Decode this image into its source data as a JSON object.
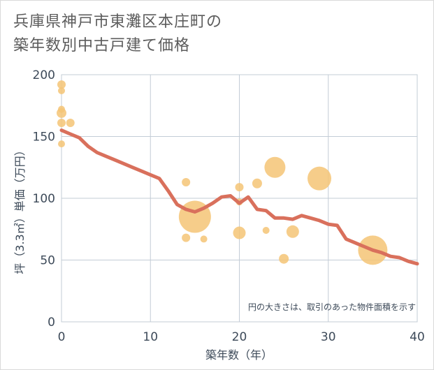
{
  "title": [
    "兵庫県神戸市東灘区本庄町の",
    "築年数別中古戸建て価格"
  ],
  "chart_data": {
    "type": "scatter",
    "title": "兵庫県神戸市東灘区本庄町の築年数別中古戸建て価格",
    "xlabel": "築年数（年）",
    "ylabel": "坪（3.3㎡）単価（万円）",
    "xlim": [
      0,
      40
    ],
    "ylim": [
      0,
      200
    ],
    "xticks": [
      0,
      10,
      20,
      30,
      40
    ],
    "yticks": [
      0,
      50,
      100,
      150,
      200
    ],
    "grid": true,
    "annotation": "円の大きさは、取引のあった物件面積を示す",
    "bubble_color": "#f5c475",
    "line_color": "#d9705c",
    "points": [
      {
        "x": 0,
        "y": 192,
        "size": 1.2
      },
      {
        "x": 0,
        "y": 187,
        "size": 1.0
      },
      {
        "x": 0,
        "y": 172,
        "size": 1.0
      },
      {
        "x": 0,
        "y": 169,
        "size": 1.4
      },
      {
        "x": 0,
        "y": 161,
        "size": 1.2
      },
      {
        "x": 0,
        "y": 144,
        "size": 1.0
      },
      {
        "x": 1,
        "y": 161,
        "size": 1.2
      },
      {
        "x": 14,
        "y": 113,
        "size": 1.2
      },
      {
        "x": 14,
        "y": 68,
        "size": 1.2
      },
      {
        "x": 15,
        "y": 85,
        "size": 4.6
      },
      {
        "x": 16,
        "y": 67,
        "size": 1.0
      },
      {
        "x": 20,
        "y": 109,
        "size": 1.2
      },
      {
        "x": 20,
        "y": 97,
        "size": 1.0
      },
      {
        "x": 20,
        "y": 72,
        "size": 1.8
      },
      {
        "x": 22,
        "y": 112,
        "size": 1.4
      },
      {
        "x": 23,
        "y": 74,
        "size": 1.0
      },
      {
        "x": 24,
        "y": 125,
        "size": 3.0
      },
      {
        "x": 25,
        "y": 51,
        "size": 1.4
      },
      {
        "x": 26,
        "y": 73,
        "size": 1.8
      },
      {
        "x": 29,
        "y": 116,
        "size": 3.4
      },
      {
        "x": 35,
        "y": 58,
        "size": 4.2
      }
    ],
    "trend": {
      "x": [
        0,
        1,
        2,
        3,
        4,
        5,
        6,
        7,
        8,
        9,
        10,
        11,
        12,
        13,
        14,
        15,
        16,
        17,
        18,
        19,
        20,
        21,
        22,
        23,
        24,
        25,
        26,
        27,
        28,
        29,
        30,
        31,
        32,
        33,
        34,
        35,
        36,
        37,
        38,
        39,
        40
      ],
      "y": [
        155,
        152,
        149,
        142,
        137,
        134,
        131,
        128,
        125,
        122,
        119,
        116,
        106,
        95,
        91,
        89,
        92,
        96,
        101,
        102,
        96,
        101,
        91,
        90,
        84,
        84,
        83,
        86,
        84,
        82,
        79,
        78,
        67,
        64,
        61,
        58,
        56,
        53,
        52,
        49,
        47
      ]
    }
  }
}
